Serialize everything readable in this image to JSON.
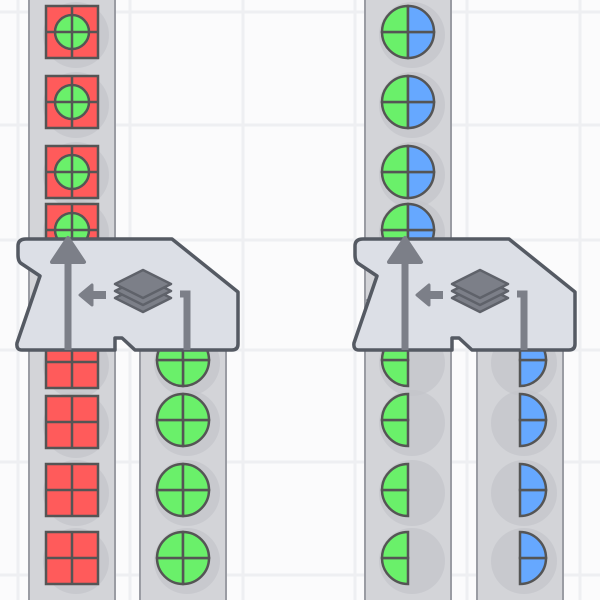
{
  "game": {
    "colors": {
      "background": "#fbfbfc",
      "grid": "#eeeff2",
      "belt": "#d3d4d8",
      "belt_edge": "#9a9ca3",
      "building_fill": "#dcdfe6",
      "building_stroke": "#555a63",
      "icon": "#7c7f88",
      "red": "#ff5b5b",
      "green": "#6af06a",
      "blue": "#66a8ff",
      "outline": "#555555"
    },
    "belts": [
      {
        "id": "left-input-belt",
        "items": [
          "red-square-green-circle",
          "red-square-green-circle",
          "red-square-green-circle",
          "red-square-green-circle"
        ],
        "segment": "top"
      },
      {
        "id": "left-output-belt-main",
        "items": [
          "red-square",
          "red-square",
          "red-square",
          "red-square"
        ],
        "segment": "bottom"
      },
      {
        "id": "left-output-belt-side",
        "items": [
          "green-circle",
          "green-circle",
          "green-circle",
          "green-circle"
        ],
        "segment": "bottom-side"
      },
      {
        "id": "right-input-belt",
        "items": [
          "green-blue-circle",
          "green-blue-circle",
          "green-blue-circle",
          "green-blue-circle"
        ],
        "segment": "top"
      },
      {
        "id": "right-output-belt-main",
        "items": [
          "green-left-half",
          "green-left-half",
          "green-left-half",
          "green-left-half"
        ],
        "segment": "bottom"
      },
      {
        "id": "right-output-belt-side",
        "items": [
          "blue-right-half",
          "blue-right-half",
          "blue-right-half",
          "blue-right-half"
        ],
        "segment": "bottom-side"
      }
    ],
    "buildings": [
      {
        "id": "unstacker-left",
        "type": "unstacker",
        "icon": "layers-icon"
      },
      {
        "id": "unstacker-right",
        "type": "unstacker",
        "icon": "layers-icon"
      }
    ]
  }
}
